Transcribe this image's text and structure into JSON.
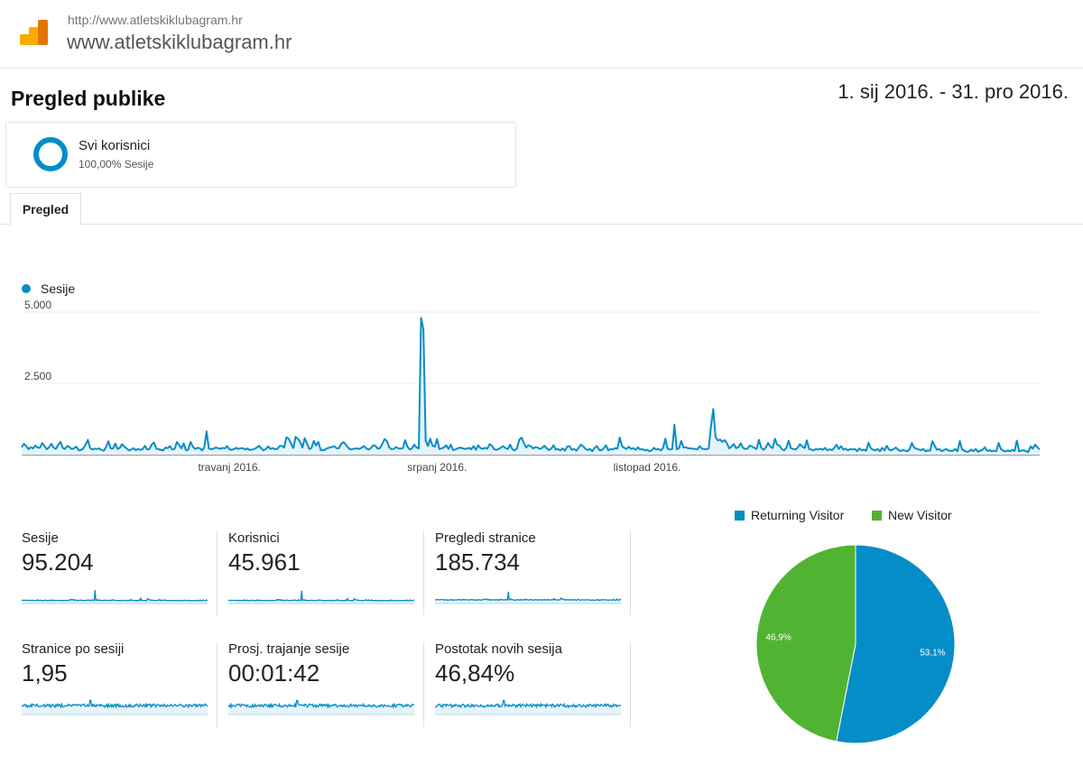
{
  "header": {
    "site_url": "http://www.atletskiklubagram.hr",
    "site_name": "www.atletskiklubagram.hr"
  },
  "page_title": "Pregled publike",
  "date_range": "1. sij 2016. - 31. pro 2016.",
  "segment": {
    "name": "Svi korisnici",
    "share": "100,00% Sesije"
  },
  "tabs": [
    {
      "label": "Pregled"
    }
  ],
  "colors": {
    "sessions": "#058dc7",
    "returning": "#058dc7",
    "new": "#50b432"
  },
  "metrics": [
    {
      "label": "Sesije",
      "value": "95.204"
    },
    {
      "label": "Korisnici",
      "value": "45.961"
    },
    {
      "label": "Pregledi stranice",
      "value": "185.734"
    },
    {
      "label": "Stranice po sesiji",
      "value": "1,95"
    },
    {
      "label": "Prosj. trajanje sesije",
      "value": "00:01:42"
    },
    {
      "label": "Postotak novih sesija",
      "value": "46,84%"
    }
  ],
  "chart_data": [
    {
      "type": "line",
      "series": [
        {
          "name": "Sesije",
          "x_start": "2016-01-01",
          "x_end": "2016-12-31",
          "values": [
            260,
            380,
            300,
            190,
            260,
            220,
            320,
            250,
            240,
            410,
            300,
            190,
            260,
            380,
            250,
            200,
            340,
            450,
            240,
            200,
            310,
            260,
            190,
            230,
            280,
            150,
            160,
            220,
            350,
            520,
            230,
            180,
            210,
            200,
            220,
            160,
            140,
            270,
            470,
            220,
            210,
            390,
            200,
            240,
            370,
            280,
            220,
            150,
            180,
            230,
            160,
            200,
            170,
            190,
            310,
            180,
            200,
            360,
            420,
            210,
            190,
            170,
            150,
            250,
            230,
            300,
            180,
            200,
            440,
            340,
            220,
            400,
            150,
            180,
            450,
            280,
            200,
            240,
            230,
            150,
            250,
            820,
            220,
            190,
            210,
            250,
            230,
            200,
            240,
            220,
            300,
            190,
            170,
            200,
            240,
            200,
            230,
            220,
            180,
            220,
            160,
            180,
            200,
            250,
            310,
            220,
            150,
            200,
            290,
            200,
            230,
            190,
            200,
            300,
            310,
            250,
            610,
            560,
            390,
            230,
            620,
            560,
            450,
            250,
            580,
            390,
            200,
            240,
            480,
            320,
            450,
            160,
            150,
            180,
            230,
            250,
            270,
            300,
            220,
            230,
            380,
            440,
            360,
            250,
            180,
            200,
            210,
            220,
            200,
            250,
            300,
            220,
            180,
            230,
            330,
            310,
            210,
            230,
            380,
            550,
            480,
            260,
            190,
            200,
            270,
            220,
            210,
            230,
            510,
            280,
            180,
            220,
            350,
            250,
            220,
            4800,
            4400,
            500,
            300,
            560,
            320,
            280,
            550,
            200,
            220,
            250,
            330,
            200,
            350,
            160,
            180,
            220,
            250,
            230,
            200,
            210,
            240,
            190,
            300,
            170,
            330,
            230,
            200,
            240,
            210,
            370,
            320,
            190,
            170,
            200,
            250,
            300,
            230,
            200,
            350,
            190,
            150,
            220,
            520,
            600,
            410,
            250,
            330,
            300,
            220,
            260,
            250,
            200,
            240,
            310,
            230,
            160,
            210,
            330,
            180,
            200,
            150,
            220,
            140,
            280,
            300,
            170,
            200,
            140,
            240,
            350,
            290,
            210,
            160,
            200,
            120,
            240,
            300,
            170,
            150,
            220,
            330,
            150,
            200,
            180,
            230,
            210,
            600,
            300,
            240,
            200,
            280,
            200,
            230,
            170,
            260,
            180,
            200,
            150,
            170,
            120,
            150,
            240,
            180,
            200,
            150,
            230,
            560,
            210,
            180,
            200,
            1050,
            190,
            230,
            480,
            250,
            260,
            220,
            220,
            210,
            200,
            180,
            300,
            210,
            200,
            190,
            220,
            1000,
            1600,
            620,
            500,
            530,
            450,
            510,
            400,
            220,
            290,
            370,
            230,
            260,
            400,
            240,
            200,
            210,
            320,
            280,
            240,
            200,
            520,
            250,
            170,
            250,
            410,
            280,
            230,
            560,
            350,
            320,
            200,
            150,
            240,
            490,
            230,
            200,
            180,
            250,
            370,
            290,
            230,
            500,
            200,
            180,
            150,
            200,
            180,
            210,
            170,
            240,
            150,
            190,
            160,
            240,
            350,
            200,
            300,
            180,
            210,
            150,
            200,
            180,
            200,
            120,
            220,
            150,
            180,
            140,
            420,
            230,
            170,
            150,
            200,
            120,
            240,
            150,
            310,
            180,
            150,
            200,
            250,
            170,
            130,
            160,
            140,
            120,
            190,
            410,
            250,
            210,
            180,
            160,
            200,
            120,
            150,
            140,
            470,
            310,
            170,
            200,
            120,
            160,
            200,
            150,
            130,
            140,
            200,
            120,
            480,
            180,
            140,
            100,
            110,
            180,
            120,
            200,
            100,
            140,
            170,
            260,
            130,
            160,
            120,
            140,
            120,
            410,
            200,
            140,
            110,
            150,
            120,
            170,
            130,
            490,
            120,
            140,
            160,
            120,
            90,
            290,
            210,
            350,
            260,
            180
          ],
          "x_tick_labels": [
            "travanj 2016.",
            "srpanj 2016.",
            "listopad 2016."
          ],
          "y_tick_labels": [
            "2.500",
            "5.000"
          ],
          "ylim": [
            0,
            5000
          ]
        }
      ]
    },
    {
      "type": "pie",
      "categories": [
        "Returning Visitor",
        "New Visitor"
      ],
      "values": [
        53.1,
        46.9
      ],
      "labels": [
        "53,1%",
        "46,9%"
      ]
    }
  ]
}
